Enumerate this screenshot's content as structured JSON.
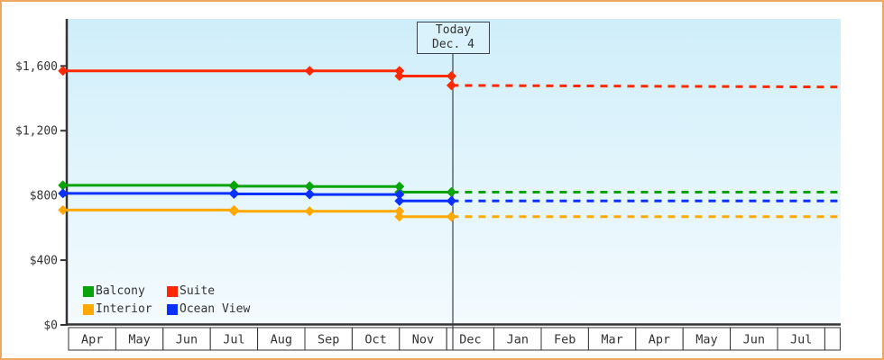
{
  "window": {
    "frame_border_color": "#eda861",
    "background_color": "#ffffff"
  },
  "chart_data": {
    "type": "line",
    "title": "",
    "description": "Cruise cabin price history by category with solid observed prices and dotted projection after today",
    "x_axis": {
      "months": [
        "Apr",
        "May",
        "Jun",
        "Jul",
        "Aug",
        "Sep",
        "Oct",
        "Nov",
        "Dec",
        "Jan",
        "Feb",
        "Mar",
        "Apr",
        "May",
        "Jun",
        "Jul",
        ""
      ]
    },
    "y_axis": {
      "tick_labels": [
        "$0",
        "$400",
        "$800",
        "$1,200",
        "$1,600"
      ],
      "tick_values": [
        0,
        400,
        800,
        1200,
        1600
      ],
      "ylim": [
        0,
        1600
      ],
      "grid": false
    },
    "today_marker": {
      "line1": "Today",
      "line2": "Dec. 4",
      "month_position": 8.13
    },
    "series": [
      {
        "name": "Balcony",
        "color": "#0aa30a",
        "solid": [
          [
            -0.12,
            863
          ],
          [
            3.5,
            863
          ],
          [
            3.5,
            857
          ],
          [
            5.1,
            857
          ],
          [
            5.1,
            855
          ],
          [
            7,
            855
          ],
          [
            7,
            820
          ],
          [
            8.1,
            820
          ]
        ],
        "dashed": [
          [
            8.1,
            820
          ],
          [
            16.34,
            820
          ]
        ]
      },
      {
        "name": "Suite",
        "color": "#ff2800",
        "solid": [
          [
            -0.12,
            1570
          ],
          [
            5.1,
            1570
          ],
          [
            7,
            1570
          ],
          [
            7,
            1538
          ],
          [
            8.1,
            1538
          ]
        ],
        "dashed": [
          [
            8.1,
            1480
          ],
          [
            16.34,
            1470
          ]
        ]
      },
      {
        "name": "Interior",
        "color": "#ffa800",
        "solid": [
          [
            -0.12,
            710
          ],
          [
            3.5,
            710
          ],
          [
            3.5,
            702
          ],
          [
            5.1,
            702
          ],
          [
            7,
            702
          ],
          [
            7,
            669
          ],
          [
            8.1,
            669
          ]
        ],
        "dashed": [
          [
            8.1,
            669
          ],
          [
            16.34,
            669
          ]
        ]
      },
      {
        "name": "Ocean View",
        "color": "#0a31ff",
        "solid": [
          [
            -0.12,
            813
          ],
          [
            3.5,
            813
          ],
          [
            3.5,
            809
          ],
          [
            5.1,
            809
          ],
          [
            5.1,
            806
          ],
          [
            7,
            806
          ],
          [
            7,
            766
          ],
          [
            8.1,
            766
          ]
        ],
        "dashed": [
          [
            8.1,
            766
          ],
          [
            16.34,
            766
          ]
        ]
      }
    ],
    "legend": {
      "position": "bottom-left",
      "rows": [
        [
          {
            "label": "Balcony",
            "color": "#0aa30a"
          },
          {
            "label": "Suite",
            "color": "#ff2800"
          }
        ],
        [
          {
            "label": "Interior",
            "color": "#ffa800"
          },
          {
            "label": "Ocean View",
            "color": "#0a31ff"
          }
        ]
      ]
    },
    "styles": {
      "plot_bg_top": "#cfeefa",
      "plot_bg_bottom": "#f4fbfe",
      "axis_color": "#333333",
      "text_color": "#333333",
      "month_cell_bg": "#ffffff",
      "today_line_color": "#3a424d"
    }
  }
}
